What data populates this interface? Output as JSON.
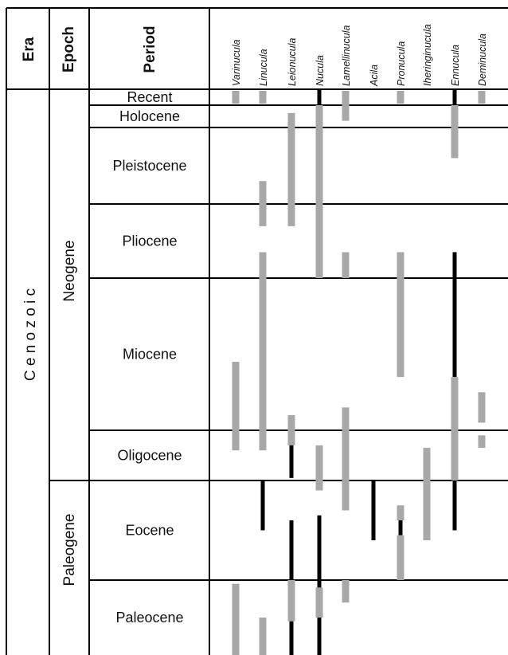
{
  "headers": {
    "era": "Era",
    "epoch": "Epoch",
    "period": "Period"
  },
  "era_label": "C e n o z o i c",
  "epochs": [
    "Neogene",
    "Paleogene"
  ],
  "periods": [
    "Recent",
    "Holocene",
    "Pleistocene",
    "Pliocene",
    "Miocene",
    "Oligocene",
    "Eocene",
    "Paleocene"
  ],
  "genera": [
    "Varinucula",
    "Linucula",
    "Leionucula",
    "Nucula",
    "Lamellinucula",
    "Acila",
    "Pronucula",
    "Iheringinucula",
    "Ennucula",
    "Deminucula"
  ],
  "colors": {
    "grey_range": "#a8a8a8",
    "black_range": "#000000",
    "lines": "#000000"
  },
  "chart_data": {
    "type": "range-chart",
    "rows": [
      "Recent",
      "Holocene",
      "Pleistocene",
      "Pliocene",
      "Miocene",
      "Oligocene",
      "Eocene",
      "Paleocene"
    ],
    "note": "ranges given in row units: 0 = top of Recent; each period row spans 1 unit (Recent 0-1 ... Paleocene 7-8)",
    "ranges": [
      {
        "genus": "Varinucula",
        "bars": [
          {
            "from": 0.1,
            "to": 0.9,
            "color": "grey"
          },
          {
            "from": 4.55,
            "to": 5.4,
            "color": "grey"
          },
          {
            "from": 7.05,
            "to": 8.0,
            "color": "grey"
          }
        ]
      },
      {
        "genus": "Linucula",
        "bars": [
          {
            "from": 0.1,
            "to": 0.9,
            "color": "grey"
          },
          {
            "from": 2.7,
            "to": 3.3,
            "color": "grey"
          },
          {
            "from": 3.65,
            "to": 5.4,
            "color": "grey"
          },
          {
            "from": 6.0,
            "to": 6.5,
            "color": "black"
          },
          {
            "from": 7.5,
            "to": 8.0,
            "color": "grey"
          }
        ]
      },
      {
        "genus": "Leionucula",
        "bars": [
          {
            "from": 1.35,
            "to": 3.3,
            "color": "grey"
          },
          {
            "from": 4.9,
            "to": 5.3,
            "color": "grey"
          },
          {
            "from": 5.3,
            "to": 5.95,
            "color": "black"
          },
          {
            "from": 6.4,
            "to": 7.0,
            "color": "black"
          },
          {
            "from": 7.0,
            "to": 7.55,
            "color": "grey"
          },
          {
            "from": 7.55,
            "to": 8.0,
            "color": "black"
          }
        ]
      },
      {
        "genus": "Nucula",
        "bars": [
          {
            "from": 0.0,
            "to": 1.0,
            "color": "black"
          },
          {
            "from": 1.0,
            "to": 4.0,
            "color": "grey"
          },
          {
            "from": 5.3,
            "to": 6.1,
            "color": "grey"
          },
          {
            "from": 6.35,
            "to": 6.5,
            "color": "black"
          },
          {
            "from": 6.5,
            "to": 7.1,
            "color": "black"
          },
          {
            "from": 7.1,
            "to": 7.5,
            "color": "grey"
          },
          {
            "from": 7.5,
            "to": 8.0,
            "color": "black"
          }
        ]
      },
      {
        "genus": "Lamellinucula",
        "bars": [
          {
            "from": 0.1,
            "to": 1.7,
            "color": "grey"
          },
          {
            "from": 3.65,
            "to": 4.0,
            "color": "grey"
          },
          {
            "from": 4.85,
            "to": 6.3,
            "color": "grey"
          },
          {
            "from": 7.0,
            "to": 7.3,
            "color": "grey"
          }
        ]
      },
      {
        "genus": "Acila",
        "bars": [
          {
            "from": 6.0,
            "to": 6.6,
            "color": "black"
          }
        ]
      },
      {
        "genus": "Pronucula",
        "bars": [
          {
            "from": 0.1,
            "to": 0.9,
            "color": "grey"
          },
          {
            "from": 3.65,
            "to": 4.65,
            "color": "grey"
          },
          {
            "from": 6.25,
            "to": 6.4,
            "color": "grey"
          },
          {
            "from": 6.4,
            "to": 6.55,
            "color": "black"
          },
          {
            "from": 6.55,
            "to": 7.0,
            "color": "grey"
          }
        ]
      },
      {
        "genus": "Iheringinucula",
        "bars": [
          {
            "from": 5.35,
            "to": 6.6,
            "color": "grey"
          }
        ]
      },
      {
        "genus": "Ennucula",
        "bars": [
          {
            "from": 0.0,
            "to": 1.0,
            "color": "black"
          },
          {
            "from": 1.0,
            "to": 2.4,
            "color": "grey"
          },
          {
            "from": 3.65,
            "to": 4.65,
            "color": "black"
          },
          {
            "from": 4.65,
            "to": 6.0,
            "color": "grey"
          },
          {
            "from": 6.0,
            "to": 6.5,
            "color": "black"
          }
        ]
      },
      {
        "genus": "Deminucula",
        "bars": [
          {
            "from": 0.1,
            "to": 0.9,
            "color": "grey"
          },
          {
            "from": 4.75,
            "to": 4.95,
            "color": "grey"
          },
          {
            "from": 5.1,
            "to": 5.35,
            "color": "grey"
          }
        ]
      }
    ]
  }
}
